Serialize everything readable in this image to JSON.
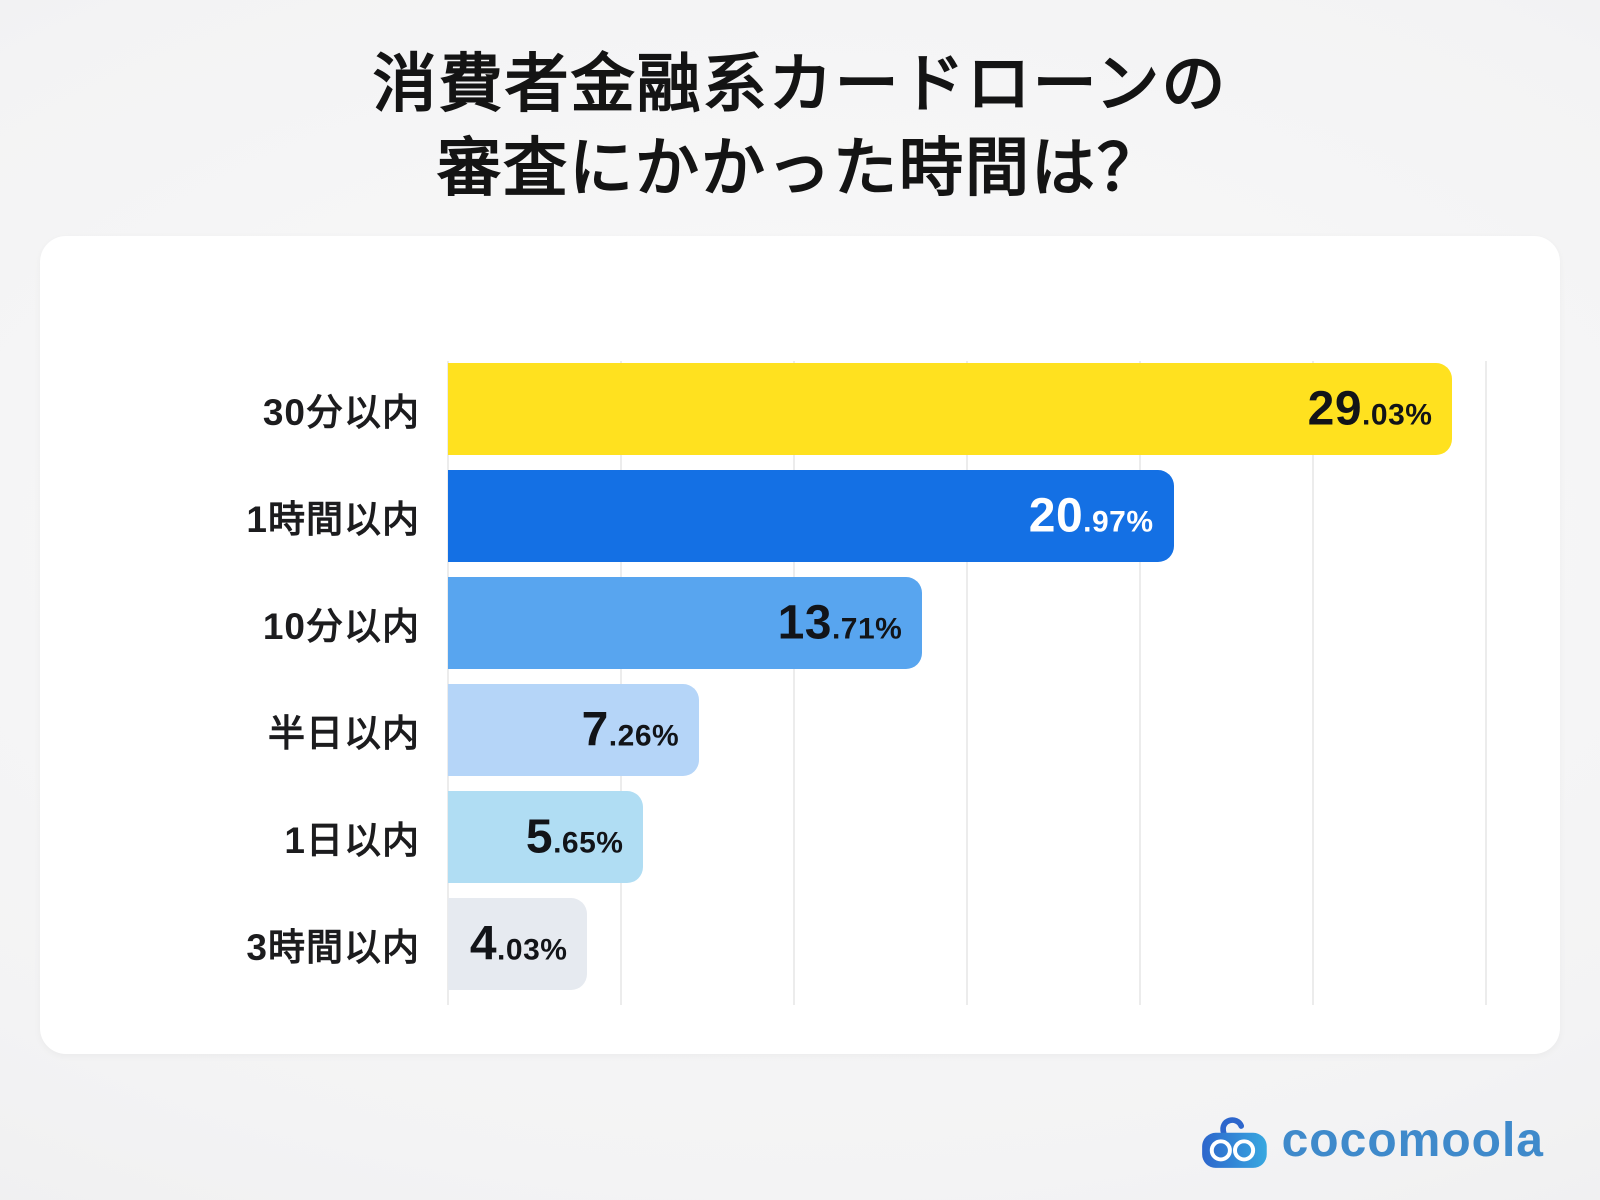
{
  "page": {
    "title_line1": "消費者金融系カードローンの",
    "title_line2": "審査にかかった時間は？"
  },
  "chart_data": {
    "type": "bar",
    "orientation": "horizontal",
    "title": "消費者金融系カードローンの審査にかかった時間は？",
    "categories": [
      "30分以内",
      "1時間以内",
      "10分以内",
      "半日以内",
      "1日以内",
      "3時間以内"
    ],
    "values": [
      29.03,
      20.97,
      13.71,
      7.26,
      5.65,
      4.03
    ],
    "value_labels": [
      "29.03%",
      "20.97%",
      "13.71%",
      "7.26%",
      "5.65%",
      "4.03%"
    ],
    "bar_colors": [
      "#ffe11f",
      "#1470e4",
      "#58a5ef",
      "#b5d5f8",
      "#b0ddf3",
      "#e6eaf0"
    ],
    "value_text_colors": [
      "#121418",
      "#ffffff",
      "#121418",
      "#121418",
      "#121418",
      "#121418"
    ],
    "xlabel": "",
    "ylabel": "",
    "xlim": [
      0,
      30
    ],
    "xticks": [
      0,
      5,
      10,
      15,
      20,
      25,
      30
    ],
    "grid": "vertical-only",
    "legend": "none"
  },
  "logo": {
    "brand": "cocomoola",
    "icon": "cocomoola-robot-icon",
    "wordmark_color": "#3f8acb",
    "icon_gradient_start": "#2d66cc",
    "icon_gradient_end": "#38a8e0"
  }
}
